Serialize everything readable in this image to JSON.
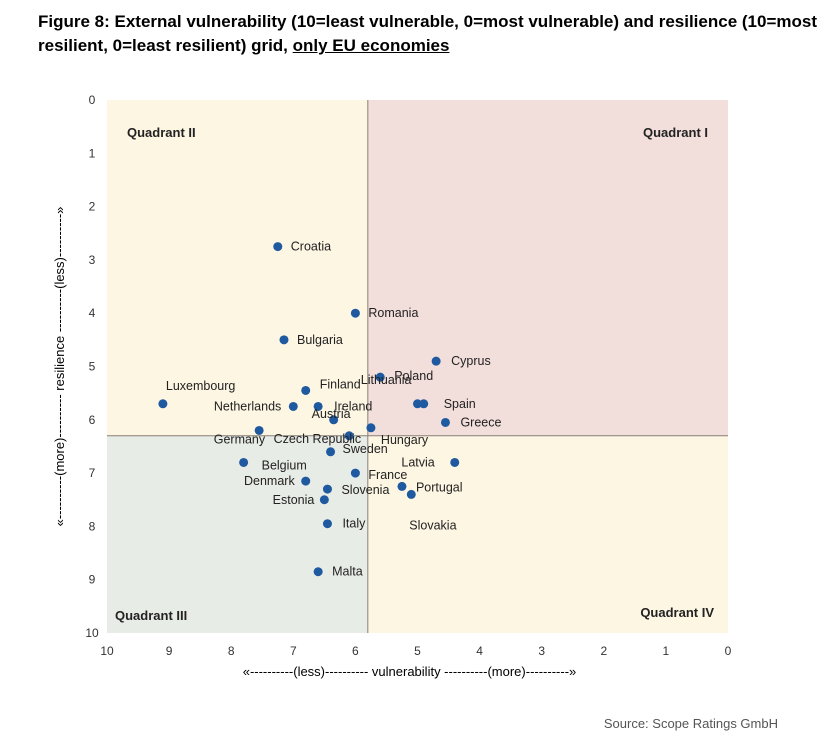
{
  "title": {
    "main": "Figure 8: External vulnerability (10=least vulnerable, 0=most vulnerable) and resilience (10=most resilient, 0=least resilient) grid,",
    "underlined": "only EU economies"
  },
  "source": "Source: Scope Ratings GmbH",
  "colors": {
    "q1": "#f2dedb",
    "q2": "#fdf6e3",
    "q3": "#e8ece6",
    "q4": "#fdf6e3",
    "divider": "#8a7e78",
    "point": "#1f5aa0"
  },
  "chart_data": {
    "type": "scatter",
    "xlabel": "«----------(less)----------  vulnerability  ----------(more)----------»",
    "ylabel": "«----------(more)----------  resilience  ----------(less)----------»",
    "xlim": [
      10,
      0
    ],
    "ylim": [
      0,
      10
    ],
    "x_reversed": true,
    "y_reversed": true,
    "divider_x": 5.8,
    "divider_y": 6.3,
    "grid": false,
    "quadrants": [
      {
        "label": "Quadrant I",
        "position": "top-right"
      },
      {
        "label": "Quadrant II",
        "position": "top-left"
      },
      {
        "label": "Quadrant III",
        "position": "bottom-left"
      },
      {
        "label": "Quadrant IV",
        "position": "bottom-right"
      }
    ],
    "x_ticks": [
      "10",
      "9",
      "8",
      "7",
      "6",
      "5",
      "4",
      "3",
      "2",
      "1",
      "0"
    ],
    "y_ticks": [
      "0",
      "1",
      "2",
      "3",
      "4",
      "5",
      "6",
      "7",
      "8",
      "9",
      "10"
    ],
    "points": [
      {
        "name": "Croatia",
        "x": 7.25,
        "y": 2.75
      },
      {
        "name": "Romania",
        "x": 6.0,
        "y": 4.0
      },
      {
        "name": "Bulgaria",
        "x": 7.15,
        "y": 4.5
      },
      {
        "name": "Cyprus",
        "x": 4.7,
        "y": 4.9
      },
      {
        "name": "Poland",
        "x": 5.6,
        "y": 5.2
      },
      {
        "name": "Finland",
        "x": 6.8,
        "y": 5.45
      },
      {
        "name": "Luxembourg",
        "x": 9.1,
        "y": 5.7
      },
      {
        "name": "Netherlands",
        "x": 7.0,
        "y": 5.75
      },
      {
        "name": "Ireland",
        "x": 6.6,
        "y": 5.75
      },
      {
        "name": "Lithuania",
        "x": 5.0,
        "y": 5.7
      },
      {
        "name": "Spain",
        "x": 4.9,
        "y": 5.7
      },
      {
        "name": "Austria",
        "x": 6.35,
        "y": 6.0
      },
      {
        "name": "Greece",
        "x": 4.55,
        "y": 6.05
      },
      {
        "name": "Hungary",
        "x": 5.75,
        "y": 6.15
      },
      {
        "name": "Germany",
        "x": 7.55,
        "y": 6.2
      },
      {
        "name": "Czech Republic",
        "x": 6.1,
        "y": 6.3
      },
      {
        "name": "Sweden",
        "x": 6.4,
        "y": 6.6
      },
      {
        "name": "Latvia",
        "x": 4.4,
        "y": 6.8
      },
      {
        "name": "Belgium",
        "x": 7.8,
        "y": 6.8
      },
      {
        "name": "France",
        "x": 6.0,
        "y": 7.0
      },
      {
        "name": "Denmark",
        "x": 6.8,
        "y": 7.15
      },
      {
        "name": "Slovenia",
        "x": 6.45,
        "y": 7.3
      },
      {
        "name": "Portugal",
        "x": 5.25,
        "y": 7.25
      },
      {
        "name": "Estonia",
        "x": 6.5,
        "y": 7.5
      },
      {
        "name": "Slovakia",
        "x": 5.1,
        "y": 7.4
      },
      {
        "name": "Italy",
        "x": 6.45,
        "y": 7.95
      },
      {
        "name": "Malta",
        "x": 6.6,
        "y": 8.85
      }
    ]
  }
}
